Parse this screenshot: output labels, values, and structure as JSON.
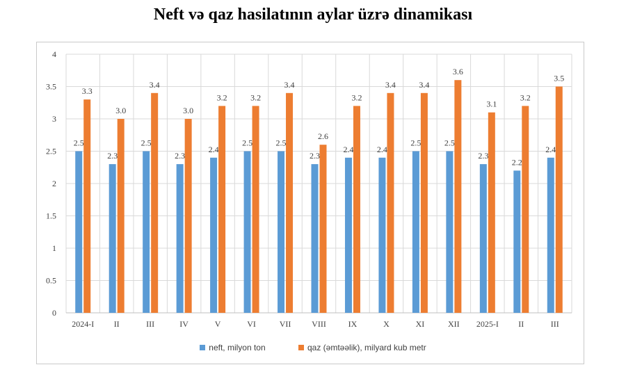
{
  "title": "Neft və qaz hasilatının aylar üzrə dinamikası",
  "colors": {
    "neft": "#5b9bd5",
    "qaz": "#ed7d31",
    "grid": "#d9d9d9",
    "axis_text": "#404040"
  },
  "chart_data": {
    "type": "bar",
    "categories": [
      "2024-I",
      "II",
      "III",
      "IV",
      "V",
      "VI",
      "VII",
      "VIII",
      "IX",
      "X",
      "XI",
      "XII",
      "2025-I",
      "II",
      "III"
    ],
    "series": [
      {
        "name": "neft, milyon ton",
        "values": [
          2.5,
          2.3,
          2.5,
          2.3,
          2.4,
          2.5,
          2.5,
          2.3,
          2.4,
          2.4,
          2.5,
          2.5,
          2.3,
          2.2,
          2.4
        ],
        "labels": [
          "2.5",
          "2.3",
          "2.5",
          "2.3",
          "2.4",
          "2.5",
          "2.5",
          "2.3",
          "2.4",
          "2.4",
          "2.5",
          "2.5",
          "2.3",
          "2.2",
          "2.4"
        ]
      },
      {
        "name": "qaz (əmtəəlik),  milyard  kub metr",
        "values": [
          3.3,
          3.0,
          3.4,
          3.0,
          3.2,
          3.2,
          3.4,
          2.6,
          3.2,
          3.4,
          3.4,
          3.6,
          3.1,
          3.2,
          3.5
        ],
        "labels": [
          "3.3",
          "3.0",
          "3.4",
          "3.0",
          "3.2",
          "3.2",
          "3.4",
          "2.6",
          "3.2",
          "3.4",
          "3.4",
          "3.6",
          "3.1",
          "3.2",
          "3.5"
        ]
      }
    ],
    "ylim": [
      0,
      4
    ],
    "yticks": [
      "0",
      "0.5",
      "1",
      "1.5",
      "2",
      "2.5",
      "3",
      "3.5",
      "4"
    ],
    "grid": true,
    "legend_position": "bottom"
  }
}
